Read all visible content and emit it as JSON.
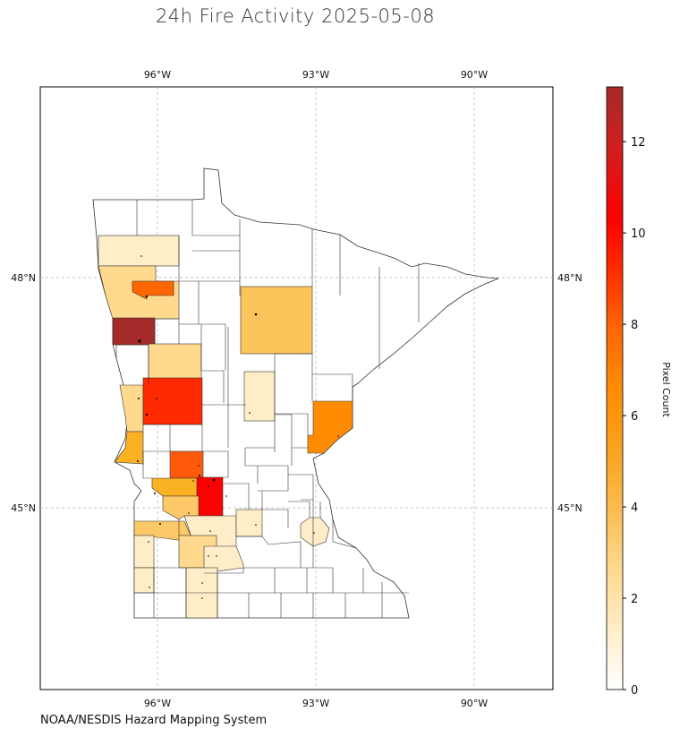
{
  "title": "24h Fire Activity 2025-05-08",
  "credit": "NOAA/NESDIS Hazard Mapping System",
  "map": {
    "lon_ticks": [
      "96°W",
      "93°W",
      "90°W"
    ],
    "lat_ticks": [
      "48°N",
      "45°N"
    ],
    "grid": true,
    "projection": "PlateCarree"
  },
  "colorbar": {
    "label": "Pixel Count",
    "min": 0,
    "max": 13.2,
    "ticks": [
      "0",
      "2",
      "4",
      "6",
      "8",
      "10",
      "12"
    ],
    "colors": [
      "#ffffff",
      "#ffedc8",
      "#fed98e",
      "#fdbb50",
      "#f9a21c",
      "#ff8c00",
      "#ff6600",
      "#ff2a00",
      "#ff0000",
      "#d01f1f",
      "#a52a2a"
    ]
  },
  "county_fire_counts": [
    {
      "value": 1
    },
    {
      "value": 2
    },
    {
      "value": 6
    },
    {
      "value": 13
    },
    {
      "value": 2
    },
    {
      "value": 2
    },
    {
      "value": 8
    },
    {
      "value": 4
    },
    {
      "value": 7
    },
    {
      "value": 4
    },
    {
      "value": 9
    },
    {
      "value": 3
    },
    {
      "value": 1
    },
    {
      "value": 2
    },
    {
      "value": 1
    },
    {
      "value": 3
    },
    {
      "value": 1
    },
    {
      "value": 1
    },
    {
      "value": 1
    },
    {
      "value": 3
    },
    {
      "value": 1
    },
    {
      "value": 5
    },
    {
      "value": 1
    }
  ]
}
